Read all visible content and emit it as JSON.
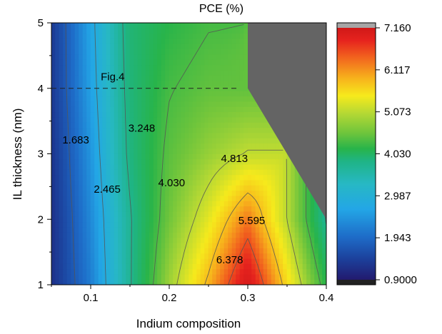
{
  "chart_data": {
    "type": "heatmap",
    "title": "PCE (%)",
    "xlabel": "Indium composition",
    "ylabel": "IL thickness (nm)",
    "xlim": [
      0.05,
      0.4
    ],
    "ylim": [
      1,
      5
    ],
    "x_ticks": [
      "0.1",
      "0.2",
      "0.3",
      "0.4"
    ],
    "y_ticks": [
      "1",
      "2",
      "3",
      "4",
      "5"
    ],
    "colorbar": {
      "range": [
        0.9,
        7.16
      ],
      "tick_labels": [
        "7.160",
        "6.117",
        "5.073",
        "4.030",
        "2.987",
        "1.943",
        "0.9000"
      ],
      "over_color": "#a6a6a6",
      "under_color": "#222222"
    },
    "missing_region_color": "#646464",
    "colormap": [
      "#221a6e",
      "#1c3f9a",
      "#1e6cc8",
      "#23a6e6",
      "#27b8c4",
      "#1fb486",
      "#28b44a",
      "#6cc43c",
      "#b4d834",
      "#f6ea1c",
      "#f7b21c",
      "#f2661e",
      "#e6231e",
      "#d01818"
    ],
    "x": [
      0.05,
      0.1,
      0.15,
      0.2,
      0.25,
      0.3,
      0.35,
      0.4
    ],
    "y": [
      1,
      2,
      3,
      4,
      5
    ],
    "values": [
      [
        1.2,
        2.0,
        3.2,
        4.6,
        5.7,
        7.05,
        5.4,
        3.8
      ],
      [
        1.2,
        2.1,
        3.2,
        4.3,
        5.1,
        6.1,
        4.8,
        3.2
      ],
      [
        1.25,
        2.2,
        3.35,
        4.15,
        4.55,
        4.85,
        null,
        null
      ],
      [
        1.3,
        2.3,
        3.4,
        4.0,
        4.2,
        4.2,
        null,
        null
      ],
      [
        1.3,
        2.35,
        3.45,
        3.8,
        4.0,
        null,
        null,
        null
      ]
    ],
    "contour_levels": [
      1.683,
      2.465,
      3.248,
      4.03,
      4.813,
      5.595,
      6.378
    ],
    "contour_labels": [
      {
        "text": "1.683",
        "x": 0.081,
        "y": 3.2
      },
      {
        "text": "2.465",
        "x": 0.121,
        "y": 2.45
      },
      {
        "text": "3.248",
        "x": 0.165,
        "y": 3.38
      },
      {
        "text": "4.030",
        "x": 0.203,
        "y": 2.55
      },
      {
        "text": "4.813",
        "x": 0.283,
        "y": 2.92
      },
      {
        "text": "5.595",
        "x": 0.305,
        "y": 1.97
      },
      {
        "text": "6.378",
        "x": 0.277,
        "y": 1.37
      }
    ],
    "annotations": [
      {
        "text": "Fig.4",
        "x": 0.128,
        "y": 4.12
      }
    ],
    "reference_line": {
      "y": 4,
      "x0": 0.05,
      "x1": 0.29,
      "style": "dashed"
    }
  }
}
